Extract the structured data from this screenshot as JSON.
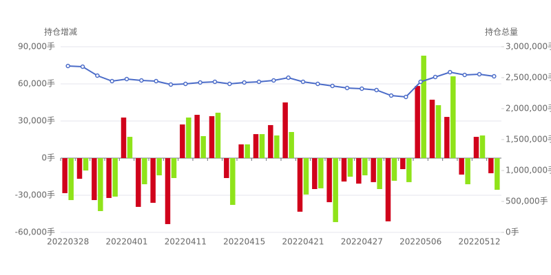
{
  "chart_data": {
    "type": "bar",
    "y_label": "持仓增减",
    "y2_label": "持仓总量",
    "categories": [
      "20220328",
      null,
      null,
      null,
      "20220401",
      null,
      null,
      null,
      "20220411",
      null,
      null,
      null,
      "20220415",
      null,
      null,
      null,
      "20220421",
      null,
      null,
      null,
      "20220427",
      null,
      null,
      null,
      "20220506",
      null,
      null,
      null,
      "20220512",
      null
    ],
    "series": [
      {
        "color": "#d0021b",
        "values": [
          -28300,
          -16700,
          -33900,
          -32200,
          32800,
          -39400,
          -36100,
          -53300,
          27200,
          35000,
          33900,
          -16100,
          11100,
          19400,
          26700,
          45000,
          -43300,
          -25000,
          -35600,
          -18900,
          -20600,
          -19400,
          -51100,
          -8900,
          58300,
          47200,
          33300,
          -13300,
          17200,
          -12200
        ]
      },
      {
        "color": "#8fe31a",
        "values": [
          -33900,
          -10000,
          -42800,
          -31100,
          17200,
          -21100,
          -13900,
          -16100,
          32800,
          17800,
          36700,
          -37800,
          11100,
          19400,
          18300,
          21100,
          -29400,
          -24400,
          -51700,
          -15000,
          -13900,
          -25000,
          -18300,
          -19400,
          82800,
          42800,
          66100,
          -21100,
          18300,
          -25600
        ]
      },
      {
        "type": "line",
        "axis": "y2",
        "color": "#4a6bc8",
        "values": [
          2688900,
          2677800,
          2533300,
          2444400,
          2477800,
          2455600,
          2444400,
          2388900,
          2400000,
          2422200,
          2433300,
          2400000,
          2422200,
          2433300,
          2455600,
          2500000,
          2433300,
          2400000,
          2366700,
          2333300,
          2322200,
          2300000,
          2211100,
          2188900,
          2433300,
          2511100,
          2588900,
          2544400,
          2555600,
          2522200
        ]
      }
    ],
    "ylim": [
      -60000,
      90000
    ],
    "yticks": [
      {
        "value": -60000,
        "label": "-60,000手"
      },
      {
        "value": -30000,
        "label": "-30,000手"
      },
      {
        "value": 0,
        "label": "0手"
      },
      {
        "value": 30000,
        "label": "30,000手"
      },
      {
        "value": 60000,
        "label": "60,000手"
      },
      {
        "value": 90000,
        "label": "90,000手"
      }
    ],
    "y2lim": [
      0,
      3000000
    ],
    "y2ticks": [
      {
        "value": 0,
        "label": "0手"
      },
      {
        "value": 500000,
        "label": "500,000手"
      },
      {
        "value": 1000000,
        "label": "1,000,000手"
      },
      {
        "value": 1500000,
        "label": "1,500,000手"
      },
      {
        "value": 2000000,
        "label": "2,000,000手"
      },
      {
        "value": 2500000,
        "label": "2,500,000手"
      },
      {
        "value": 3000000,
        "label": "3,000,000手"
      }
    ],
    "grid": true
  }
}
